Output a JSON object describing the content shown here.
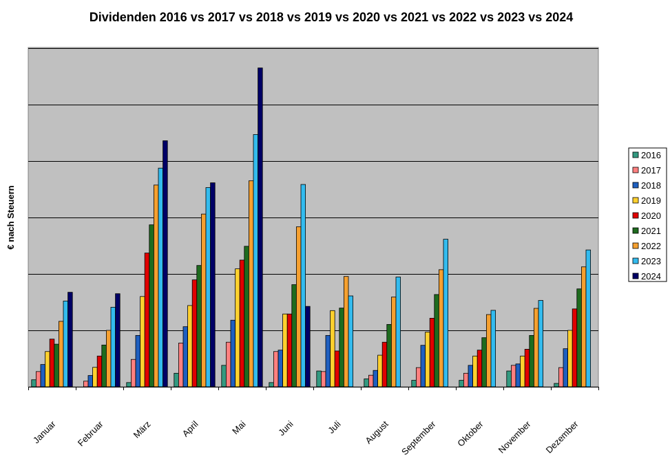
{
  "chart_data": {
    "type": "bar",
    "title": "Dividenden 2016 vs 2017 vs 2018 vs 2019 vs 2020 vs 2021 vs 2022 vs 2023 vs 2024",
    "ylabel": "€ nach Steuern",
    "xlabel": "",
    "ylim": [
      0,
      1200
    ],
    "y_gridlines": [
      200,
      400,
      600,
      800,
      1000,
      1200
    ],
    "y_tick_labels_shown": false,
    "grid": true,
    "plot_background": "#c0c0c0",
    "legend_position": "right",
    "categories": [
      "Januar",
      "Februar",
      "März",
      "April",
      "Mai",
      "Juni",
      "Juli",
      "August",
      "September",
      "Oktober",
      "November",
      "Dezember"
    ],
    "series": [
      {
        "name": "2016",
        "color": "#339980",
        "values": [
          25,
          0,
          15,
          48,
          76,
          15,
          56,
          28,
          23,
          23,
          56,
          12
        ]
      },
      {
        "name": "2017",
        "color": "#ff8080",
        "values": [
          54,
          20,
          97,
          155,
          158,
          125,
          54,
          41,
          68,
          48,
          76,
          68
        ]
      },
      {
        "name": "2018",
        "color": "#1f5fbf",
        "values": [
          79,
          40,
          182,
          213,
          236,
          130,
          182,
          58,
          147,
          76,
          81,
          135
        ]
      },
      {
        "name": "2019",
        "color": "#ffd02e",
        "values": [
          125,
          69,
          320,
          288,
          418,
          258,
          270,
          112,
          194,
          109,
          109,
          200
        ]
      },
      {
        "name": "2020",
        "color": "#e00000",
        "values": [
          169,
          109,
          474,
          379,
          449,
          258,
          127,
          158,
          243,
          130,
          133,
          276
        ]
      },
      {
        "name": "2021",
        "color": "#1e6b1e",
        "values": [
          151,
          148,
          574,
          430,
          498,
          362,
          279,
          221,
          327,
          174,
          182,
          347
        ]
      },
      {
        "name": "2022",
        "color": "#f5a030",
        "values": [
          232,
          200,
          715,
          612,
          730,
          567,
          391,
          318,
          415,
          256,
          278,
          425
        ]
      },
      {
        "name": "2023",
        "color": "#33bbee",
        "values": [
          304,
          282,
          775,
          706,
          894,
          717,
          322,
          389,
          523,
          271,
          306,
          485
        ]
      },
      {
        "name": "2024",
        "color": "#000066",
        "values": [
          335,
          330,
          872,
          723,
          1130,
          285,
          0,
          0,
          0,
          0,
          0,
          0
        ]
      }
    ]
  }
}
